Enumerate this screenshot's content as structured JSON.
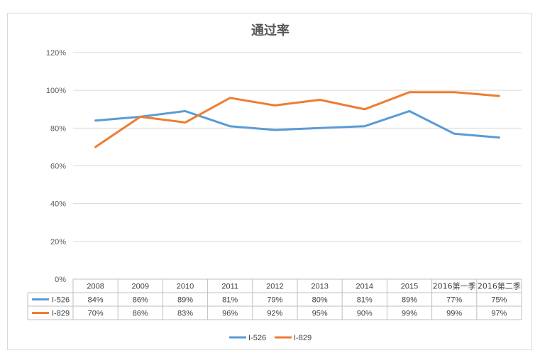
{
  "chart_data": {
    "type": "line",
    "title": "通过率",
    "categories": [
      "2008",
      "2009",
      "2010",
      "2011",
      "2012",
      "2013",
      "2014",
      "2015",
      "2016第一季",
      "2016第二季"
    ],
    "series": [
      {
        "name": "I-526",
        "color": "#5b9bd5",
        "values": [
          84,
          86,
          89,
          81,
          79,
          80,
          81,
          89,
          77,
          75
        ],
        "labels": [
          "84%",
          "86%",
          "89%",
          "81%",
          "79%",
          "80%",
          "81%",
          "89%",
          "77%",
          "75%"
        ]
      },
      {
        "name": "I-829",
        "color": "#ed7d31",
        "values": [
          70,
          86,
          83,
          96,
          92,
          95,
          90,
          99,
          99,
          97
        ],
        "labels": [
          "70%",
          "86%",
          "83%",
          "96%",
          "92%",
          "95%",
          "90%",
          "99%",
          "99%",
          "97%"
        ]
      }
    ],
    "ylim": [
      0,
      120
    ],
    "yticks": [
      0,
      20,
      40,
      60,
      80,
      100,
      120
    ],
    "ytick_labels": [
      "0%",
      "20%",
      "40%",
      "60%",
      "80%",
      "100%",
      "120%"
    ],
    "grid": true,
    "data_table": true,
    "legend": "bottom"
  }
}
